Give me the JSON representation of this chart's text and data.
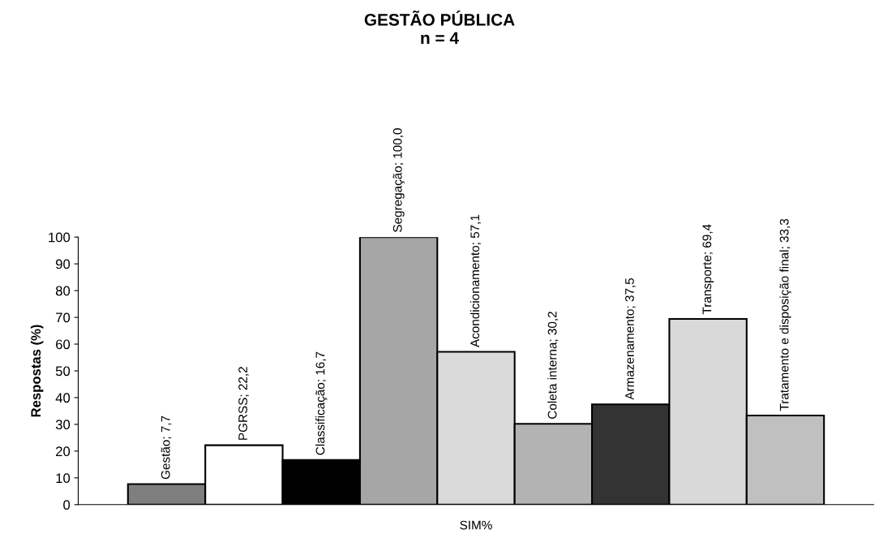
{
  "chart_data": {
    "type": "bar",
    "title": "GESTÃO PÚBLICA\nn = 4",
    "xlabel": null,
    "ylabel": "Respostas (%)",
    "categories": [
      "SIM%"
    ],
    "series": [
      {
        "name": "Gestão",
        "color": "#7f7f7f",
        "values": [
          7.7
        ],
        "value_labels": [
          "; 7,7"
        ]
      },
      {
        "name": "PGRSS",
        "color": "#ffffff",
        "values": [
          22.2
        ],
        "value_labels": [
          "; 22,2"
        ]
      },
      {
        "name": "Classificação",
        "color": "#000000",
        "values": [
          16.7
        ],
        "value_labels": [
          "; 16,7"
        ]
      },
      {
        "name": "Segregação",
        "color": "#a6a6a6",
        "values": [
          100.0
        ],
        "value_labels": [
          "; 100,0"
        ]
      },
      {
        "name": "Acondicionamento",
        "color": "#dadada",
        "values": [
          57.1
        ],
        "value_labels": [
          "; 57,1"
        ]
      },
      {
        "name": "Coleta interna",
        "color": "#b3b3b3",
        "values": [
          30.2
        ],
        "value_labels": [
          "; 30,2"
        ]
      },
      {
        "name": "Armazenamento",
        "color": "#333333",
        "values": [
          37.5
        ],
        "value_labels": [
          "; 37,5"
        ]
      },
      {
        "name": "Transporte",
        "color": "#d9d9d9",
        "values": [
          69.4
        ],
        "value_labels": [
          "; 69,4"
        ]
      },
      {
        "name": "Tratamento e disposição final",
        "color": "#c0c0c0",
        "values": [
          33.3
        ],
        "value_labels": [
          "; 33,3"
        ]
      }
    ],
    "ylim": [
      0,
      100
    ],
    "yticks": [
      0,
      10,
      20,
      30,
      40,
      50,
      60,
      70,
      80,
      90,
      100
    ],
    "grid": false,
    "legend": false
  }
}
